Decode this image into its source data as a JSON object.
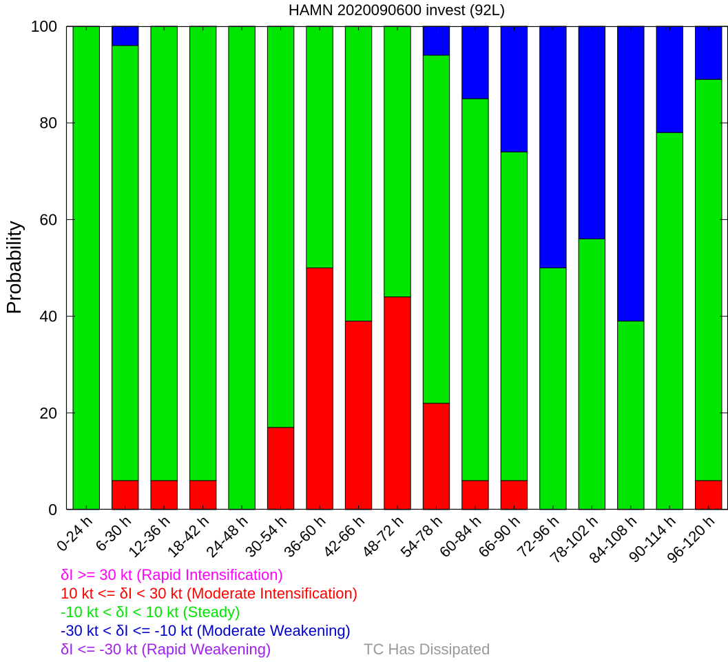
{
  "chart_data": {
    "type": "bar",
    "stacked": true,
    "title": "HAMN 2020090600 invest (92L)",
    "xlabel": "",
    "ylabel": "Probability",
    "ylim": [
      0,
      100
    ],
    "yticks": [
      "0",
      "20",
      "40",
      "60",
      "80",
      "100"
    ],
    "grid": false,
    "categories": [
      "0-24 h",
      "6-30 h",
      "12-36 h",
      "18-42 h",
      "24-48 h",
      "30-54 h",
      "36-60 h",
      "42-66 h",
      "48-72 h",
      "54-78 h",
      "60-84 h",
      "66-90 h",
      "72-96 h",
      "78-102 h",
      "84-108 h",
      "90-114 h",
      "96-120 h"
    ],
    "series": [
      {
        "color": "#ff0000",
        "values": [
          0,
          6,
          6,
          6,
          0,
          17,
          50,
          39,
          44,
          22,
          6,
          6,
          0,
          0,
          0,
          0,
          6
        ]
      },
      {
        "color": "#00e600",
        "values": [
          100,
          90,
          94,
          94,
          100,
          83,
          50,
          61,
          56,
          72,
          79,
          68,
          50,
          56,
          39,
          78,
          83
        ]
      },
      {
        "color": "#0000ff",
        "values": [
          0,
          4,
          0,
          0,
          0,
          0,
          0,
          0,
          0,
          6,
          15,
          26,
          50,
          44,
          61,
          22,
          11
        ]
      }
    ]
  },
  "legend": {
    "items": [
      {
        "text": "δI >= 30 kt (Rapid Intensification)",
        "color": "#ff00ff"
      },
      {
        "text": "10 kt <= δI < 30 kt (Moderate Intensification)",
        "color": "#ff0000"
      },
      {
        "text": "-10 kt < δI < 10 kt (Steady)",
        "color": "#00e600"
      },
      {
        "text": "-30 kt < δI <= -10 kt (Moderate Weakening)",
        "color": "#0000cc"
      },
      {
        "text": "δI <= -30 kt (Rapid Weakening)",
        "color": "#a020f0"
      }
    ],
    "dissipated": {
      "text": "TC Has Dissipated",
      "color": "#999999"
    }
  }
}
